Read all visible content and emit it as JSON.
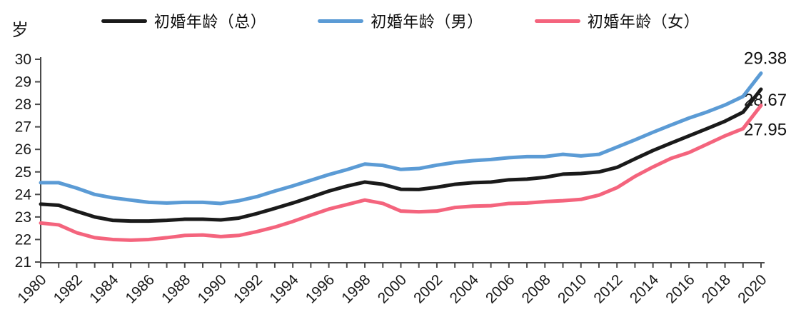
{
  "chart_data": {
    "type": "line",
    "title": "",
    "y_label": "岁",
    "x_label": "",
    "ylim": [
      21,
      30
    ],
    "y_ticks": [
      21,
      22,
      23,
      24,
      25,
      26,
      27,
      28,
      29,
      30
    ],
    "x": [
      1980,
      1981,
      1982,
      1983,
      1984,
      1985,
      1986,
      1987,
      1988,
      1989,
      1990,
      1991,
      1992,
      1993,
      1994,
      1995,
      1996,
      1997,
      1998,
      1999,
      2000,
      2001,
      2002,
      2003,
      2004,
      2005,
      2006,
      2007,
      2008,
      2009,
      2010,
      2011,
      2012,
      2013,
      2014,
      2015,
      2016,
      2017,
      2018,
      2019,
      2020
    ],
    "x_label_step": 2,
    "grid": false,
    "legend_position": "top",
    "series": [
      {
        "key": "total",
        "name": "初婚年龄（总）",
        "color": "#1a1a1a",
        "end_label": "28.67",
        "values": [
          23.57,
          23.52,
          23.25,
          23.0,
          22.85,
          22.82,
          22.82,
          22.85,
          22.9,
          22.9,
          22.87,
          22.95,
          23.15,
          23.38,
          23.62,
          23.88,
          24.15,
          24.37,
          24.55,
          24.45,
          24.23,
          24.22,
          24.32,
          24.45,
          24.52,
          24.55,
          24.65,
          24.68,
          24.76,
          24.9,
          24.93,
          25.0,
          25.2,
          25.58,
          25.95,
          26.28,
          26.6,
          26.92,
          27.25,
          27.65,
          28.67
        ]
      },
      {
        "key": "male",
        "name": "初婚年龄（男）",
        "color": "#5B9BD5",
        "end_label": "29.38",
        "values": [
          24.52,
          24.52,
          24.28,
          24.0,
          23.85,
          23.75,
          23.65,
          23.62,
          23.65,
          23.65,
          23.6,
          23.72,
          23.9,
          24.15,
          24.38,
          24.63,
          24.88,
          25.1,
          25.35,
          25.29,
          25.11,
          25.15,
          25.3,
          25.42,
          25.5,
          25.55,
          25.63,
          25.68,
          25.68,
          25.78,
          25.71,
          25.78,
          26.1,
          26.42,
          26.76,
          27.08,
          27.39,
          27.66,
          27.97,
          28.35,
          29.38
        ]
      },
      {
        "key": "female",
        "name": "初婚年龄（女）",
        "color": "#F4647D",
        "end_label": "27.95",
        "values": [
          22.73,
          22.65,
          22.3,
          22.08,
          22.0,
          21.97,
          22.0,
          22.08,
          22.18,
          22.2,
          22.13,
          22.18,
          22.35,
          22.55,
          22.8,
          23.08,
          23.35,
          23.55,
          23.75,
          23.6,
          23.26,
          23.23,
          23.26,
          23.42,
          23.48,
          23.5,
          23.6,
          23.62,
          23.68,
          23.72,
          23.78,
          23.97,
          24.3,
          24.8,
          25.22,
          25.6,
          25.86,
          26.23,
          26.6,
          26.92,
          27.95
        ]
      }
    ]
  }
}
